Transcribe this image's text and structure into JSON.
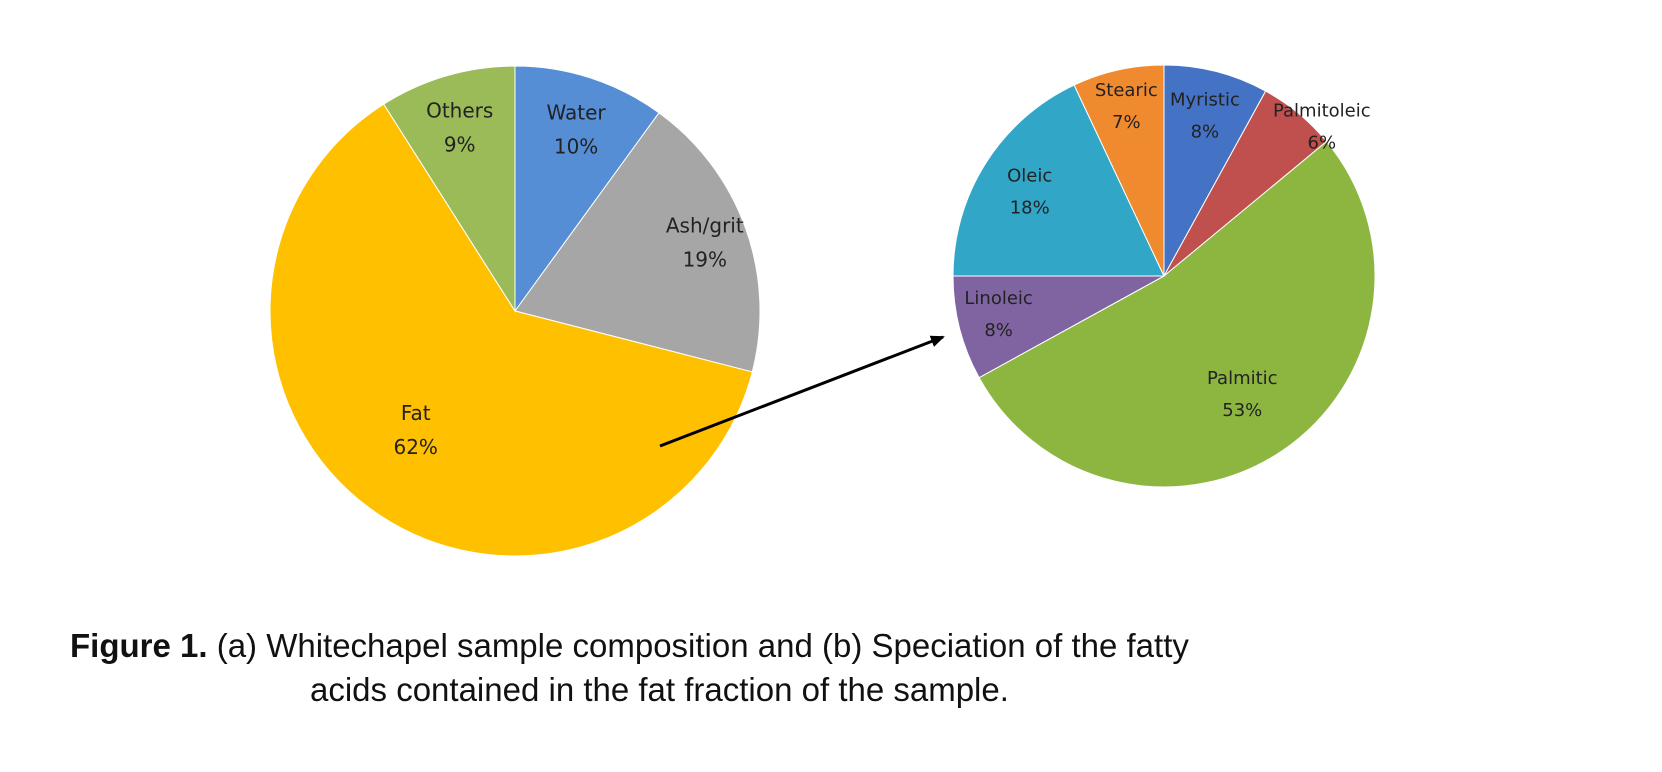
{
  "chart_data": [
    {
      "type": "pie",
      "labels": [
        "Water",
        "Ash/grit",
        "Fat",
        "Others"
      ],
      "values": [
        10,
        19,
        62,
        9
      ],
      "value_labels": [
        "10%",
        "19%",
        "62%",
        "9%"
      ],
      "colors": [
        "#558ED5",
        "#A6A6A6",
        "#FFC000",
        "#9BBB59"
      ],
      "start": "12 o'clock",
      "direction": "clockwise",
      "legend": "none"
    },
    {
      "type": "pie",
      "labels": [
        "Myristic",
        "Palmitoleic",
        "Palmitic",
        "Linoleic",
        "Oleic",
        "Stearic"
      ],
      "values": [
        8,
        6,
        53,
        8,
        18,
        7
      ],
      "value_labels": [
        "8%",
        "6%",
        "53%",
        "8%",
        "18%",
        "7%"
      ],
      "colors": [
        "#4472C4",
        "#C0504D",
        "#8DB641",
        "#8064A2",
        "#31A6C7",
        "#F08A2E"
      ],
      "start": "12 o'clock",
      "direction": "clockwise",
      "legend": "none"
    }
  ],
  "caption": {
    "lead": "Figure 1.",
    "line1": " (a) Whitechapel sample composition and (b) Speciation of the fatty",
    "line2": "acids contained in the fat fraction of the sample."
  }
}
